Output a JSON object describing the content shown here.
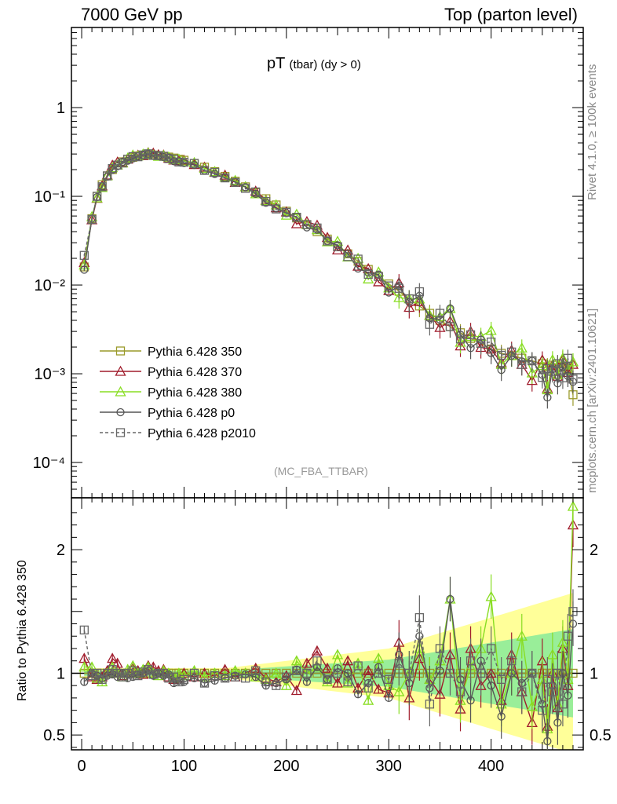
{
  "header": {
    "left": "7000 GeV pp",
    "right": "Top (parton level)"
  },
  "side": {
    "rivet": "Rivet 4.1.0, ≥ 100k events",
    "mcplots": "mcplots.cern.ch [arXiv:2401.10621]"
  },
  "plot_title": {
    "main": "pT",
    "sub": "(tbar) (dy > 0)"
  },
  "analysis_label": "(MC_FBA_TTBAR)",
  "ratio_ylabel": "Ratio to Pythia 6.428 350",
  "chart_data": [
    {
      "type": "line",
      "panel": "main",
      "title": "pT (tbar) (dy > 0)",
      "yscale": "log",
      "ylim": [
        4e-05,
        8
      ],
      "xlim": [
        -10,
        490
      ],
      "ytick_labels": [
        "10⁻⁴",
        "10⁻³",
        "10⁻²",
        "10⁻¹",
        "1"
      ],
      "ytick_values": [
        0.0001,
        0.001,
        0.01,
        0.1,
        1
      ],
      "legend_position": "center-left",
      "series": [
        {
          "name": "Pythia 6.428 350",
          "color": "#9a9a2a",
          "marker": "square-open",
          "dashed": false
        },
        {
          "name": "Pythia 6.428 370",
          "color": "#a01c2c",
          "marker": "triangle-open",
          "dashed": false
        },
        {
          "name": "Pythia 6.428 380",
          "color": "#88dd22",
          "marker": "triangle-open",
          "dashed": false
        },
        {
          "name": "Pythia 6.428 p0",
          "color": "#555555",
          "marker": "circle-open",
          "dashed": false
        },
        {
          "name": "Pythia 6.428 p2010",
          "color": "#666666",
          "marker": "square-open",
          "dashed": true
        }
      ],
      "x": [
        2.5,
        10,
        15,
        20,
        25,
        30,
        35,
        40,
        45,
        50,
        55,
        60,
        65,
        70,
        75,
        80,
        85,
        90,
        95,
        100,
        110,
        120,
        130,
        140,
        150,
        160,
        170,
        180,
        190,
        200,
        210,
        220,
        230,
        240,
        250,
        260,
        270,
        280,
        290,
        300,
        310,
        320,
        330,
        340,
        350,
        360,
        370,
        380,
        390,
        400,
        410,
        420,
        430,
        440,
        450,
        455,
        460,
        465,
        470,
        475,
        480
      ],
      "reference": [
        0.016,
        0.056,
        0.1,
        0.135,
        0.17,
        0.2,
        0.225,
        0.245,
        0.262,
        0.275,
        0.285,
        0.29,
        0.293,
        0.292,
        0.288,
        0.283,
        0.277,
        0.27,
        0.262,
        0.255,
        0.235,
        0.213,
        0.19,
        0.168,
        0.148,
        0.128,
        0.11,
        0.094,
        0.08,
        0.068,
        0.057,
        0.048,
        0.04,
        0.033,
        0.027,
        0.0225,
        0.0185,
        0.015,
        0.0125,
        0.0103,
        0.0085,
        0.007,
        0.0058,
        0.0048,
        0.004,
        0.0034,
        0.0029,
        0.0025,
        0.0022,
        0.0019,
        0.0017,
        0.0016,
        0.0015,
        0.0014,
        0.0013,
        0.0012,
        0.00125,
        0.0013,
        0.0012,
        0.00115,
        0.00058
      ],
      "ratios": [
        [
          1.0,
          1.0,
          1.0,
          1.0,
          1.0,
          1.0,
          1.0,
          1.0,
          1.0,
          1.0,
          1.0,
          1.0,
          1.0,
          1.0,
          1.0,
          1.0,
          1.0,
          1.0,
          1.0,
          1.0,
          1.0,
          1.0,
          1.0,
          1.0,
          1.0,
          1.0,
          1.0,
          1.0,
          1.0,
          1.0,
          1.0,
          1.0,
          1.0,
          1.0,
          1.0,
          1.0,
          1.0,
          1.0,
          1.0,
          1.0,
          1.0,
          1.0,
          1.0,
          1.0,
          1.0,
          1.0,
          1.0,
          1.0,
          1.0,
          1.0,
          1.0,
          1.0,
          1.0,
          1.0,
          1.0,
          1.0,
          1.0,
          1.0,
          1.0,
          1.0,
          1.0
        ],
        [
          1.12,
          0.97,
          0.95,
          0.97,
          1.02,
          1.12,
          1.08,
          0.98,
          1.0,
          1.04,
          1.02,
          0.99,
          1.06,
          1.05,
          1.02,
          1.03,
          0.97,
          0.95,
          0.96,
          1.0,
          0.97,
          1.0,
          0.98,
          1.03,
          0.97,
          1.0,
          1.04,
          0.96,
          0.93,
          0.98,
          0.86,
          1.08,
          1.18,
          1.04,
          0.92,
          1.1,
          0.88,
          1.02,
          0.87,
          0.84,
          1.25,
          0.8,
          1.12,
          0.95,
          0.83,
          1.15,
          0.71,
          1.2,
          0.9,
          1.0,
          0.78,
          1.15,
          0.85,
          0.6,
          1.1,
          0.57,
          1.0,
          0.72,
          1.2,
          0.9,
          2.2
        ],
        [
          1.05,
          1.05,
          0.96,
          0.93,
          1.0,
          1.05,
          1.0,
          0.97,
          1.03,
          1.06,
          1.0,
          1.03,
          1.05,
          1.0,
          0.98,
          1.02,
          1.0,
          0.96,
          1.0,
          0.98,
          1.02,
          0.97,
          1.0,
          0.98,
          1.02,
          1.0,
          0.97,
          0.95,
          1.0,
          0.9,
          1.1,
          1.0,
          1.05,
          0.93,
          1.15,
          0.92,
          1.08,
          0.78,
          1.12,
          0.9,
          0.85,
          1.0,
          1.2,
          0.95,
          1.1,
          1.6,
          0.78,
          1.05,
          1.2,
          1.62,
          0.75,
          1.0,
          1.3,
          0.73,
          0.95,
          0.55,
          1.15,
          0.75,
          1.25,
          0.95,
          2.35
        ],
        [
          0.93,
          1.0,
          0.98,
          0.96,
          0.98,
          0.99,
          0.97,
          1.0,
          0.96,
          0.97,
          0.99,
          1.0,
          1.02,
          0.98,
          1.0,
          0.98,
          0.99,
          0.92,
          0.94,
          0.93,
          0.96,
          0.92,
          0.94,
          0.96,
          0.98,
          0.99,
          0.97,
          0.9,
          0.92,
          0.95,
          1.03,
          0.93,
          1.05,
          0.95,
          1.04,
          1.0,
          0.83,
          0.92,
          1.05,
          0.8,
          1.15,
          0.92,
          1.3,
          0.88,
          1.02,
          1.6,
          0.95,
          0.78,
          1.1,
          0.9,
          0.65,
          1.0,
          0.92,
          1.0,
          0.75,
          0.45,
          0.9,
          0.6,
          1.0,
          0.82,
          1.4
        ],
        [
          1.35,
          0.98,
          1.0,
          0.95,
          1.0,
          1.03,
          1.0,
          0.97,
          1.0,
          1.02,
          0.98,
          1.01,
          1.03,
          0.99,
          1.0,
          1.0,
          0.96,
          0.97,
          0.93,
          0.95,
          1.0,
          0.92,
          0.98,
          0.96,
          0.97,
          0.96,
          1.02,
          0.93,
          0.9,
          0.97,
          1.02,
          1.0,
          1.1,
          0.95,
          1.0,
          0.93,
          1.06,
          0.88,
          1.0,
          0.95,
          1.08,
          1.0,
          1.45,
          0.75,
          1.2,
          1.0,
          0.85,
          1.1,
          1.0,
          1.2,
          0.95,
          1.1,
          0.85,
          1.0,
          0.7,
          0.95,
          0.85,
          1.0,
          0.75,
          1.3,
          1.5
        ]
      ]
    },
    {
      "type": "line",
      "panel": "ratio",
      "ylabel": "Ratio to Pythia 6.428 350",
      "ylim": [
        0.38,
        2.42
      ],
      "ytick_labels": [
        "0.5",
        "1",
        "2"
      ],
      "ytick_values": [
        0.5,
        1,
        2
      ],
      "xlim": [
        -10,
        490
      ],
      "xtick_labels": [
        "0",
        "100",
        "200",
        "300",
        "400"
      ],
      "xtick_values": [
        0,
        100,
        200,
        300,
        400
      ]
    }
  ]
}
